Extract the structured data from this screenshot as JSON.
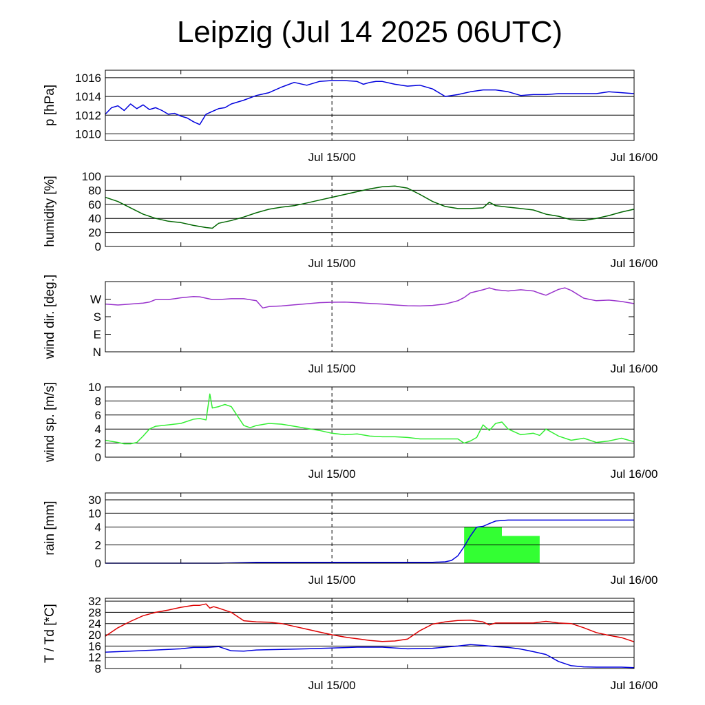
{
  "title": "Leipzig (Jul 14 2025 06UTC)",
  "chart_data": [
    {
      "id": "pressure",
      "type": "line",
      "ylabel": "p [hPa]",
      "ylim": [
        1009.3,
        1016.8
      ],
      "yticks": [
        1010,
        1012,
        1014,
        1016
      ],
      "grid": true,
      "x_ticks": [
        "Jul 15/00",
        "Jul 16/00"
      ],
      "colors": {
        "line": "#0000dd"
      },
      "series": [
        {
          "x": [
            0,
            0.5,
            1,
            1.5,
            2,
            2.5,
            3,
            3.5,
            4,
            4.5,
            5,
            5.5,
            6,
            6.5,
            7,
            7.5,
            8,
            8.5,
            9,
            9.5,
            10,
            11,
            12,
            13,
            14,
            15,
            16,
            17,
            18,
            19,
            20,
            20.5,
            21,
            21.5,
            22,
            23,
            24,
            25,
            26,
            27,
            28,
            29,
            30,
            31,
            32,
            33,
            34,
            35,
            36,
            37,
            38,
            39,
            40,
            41,
            42
          ],
          "y": [
            1012.1,
            1012.8,
            1013.0,
            1012.5,
            1013.2,
            1012.7,
            1013.1,
            1012.6,
            1012.8,
            1012.5,
            1012.1,
            1012.2,
            1011.9,
            1011.7,
            1011.3,
            1011.0,
            1012.1,
            1012.4,
            1012.7,
            1012.8,
            1013.2,
            1013.6,
            1014.1,
            1014.4,
            1015.0,
            1015.5,
            1015.2,
            1015.6,
            1015.7,
            1015.7,
            1015.6,
            1015.3,
            1015.5,
            1015.6,
            1015.6,
            1015.3,
            1015.1,
            1015.2,
            1014.8,
            1014.0,
            1014.2,
            1014.5,
            1014.7,
            1014.7,
            1014.5,
            1014.1,
            1014.2,
            1014.2,
            1014.3,
            1014.3,
            1014.3,
            1014.3,
            1014.5,
            1014.4,
            1014.3
          ]
        }
      ]
    },
    {
      "id": "humidity",
      "type": "line",
      "ylabel": "humidity [%]",
      "ylim": [
        0,
        100
      ],
      "yticks": [
        0,
        20,
        40,
        60,
        80,
        100
      ],
      "grid": true,
      "x_ticks": [
        "Jul 15/00",
        "Jul 16/00"
      ],
      "colors": {
        "line": "#006600"
      },
      "series": [
        {
          "x": [
            0,
            1,
            2,
            3,
            4,
            5,
            6,
            7,
            8,
            8.5,
            9,
            10,
            11,
            12,
            13,
            14,
            15,
            16,
            17,
            18,
            19,
            20,
            21,
            22,
            23,
            24,
            25,
            26,
            27,
            28,
            29,
            30,
            30.5,
            31,
            32,
            33,
            34,
            35,
            36,
            37,
            38,
            39,
            40,
            41,
            42
          ],
          "y": [
            70,
            64,
            55,
            46,
            40,
            36,
            34,
            30,
            27,
            26,
            33,
            37,
            42,
            48,
            53,
            56,
            58,
            62,
            66,
            70,
            74,
            78,
            82,
            85,
            86,
            83,
            74,
            64,
            57,
            54,
            54,
            55,
            63,
            58,
            56,
            54,
            52,
            46,
            43,
            38,
            37,
            40,
            44,
            49,
            53
          ]
        }
      ]
    },
    {
      "id": "wind-direction",
      "type": "line",
      "ylabel": "wind dir. [deg.]",
      "ylim": [
        0,
        360
      ],
      "yticks": [
        0,
        90,
        180,
        270
      ],
      "ytick_labels": [
        "N",
        "E",
        "S",
        "W"
      ],
      "grid": false,
      "x_ticks": [
        "Jul 15/00",
        "Jul 16/00"
      ],
      "colors": {
        "line": "#9933cc"
      },
      "series": [
        {
          "x": [
            0,
            1,
            2,
            3,
            3.5,
            4,
            5,
            5.5,
            6,
            7,
            7.5,
            8,
            8.5,
            9,
            10,
            11,
            12,
            12.5,
            13,
            14,
            15,
            16,
            17,
            18,
            19,
            20,
            21,
            22,
            23,
            24,
            25,
            26,
            27,
            28,
            28.5,
            29,
            30,
            30.5,
            31,
            32,
            33,
            33.5,
            34,
            34.5,
            35,
            36,
            36.5,
            37,
            38,
            39,
            40,
            41,
            42
          ],
          "y": [
            245,
            240,
            245,
            250,
            255,
            268,
            268,
            272,
            277,
            283,
            282,
            275,
            268,
            268,
            272,
            272,
            262,
            225,
            232,
            235,
            241,
            246,
            252,
            254,
            255,
            252,
            248,
            245,
            240,
            236,
            235,
            238,
            245,
            262,
            278,
            302,
            318,
            328,
            318,
            312,
            318,
            315,
            312,
            300,
            290,
            320,
            328,
            315,
            275,
            262,
            265,
            258,
            247
          ]
        }
      ]
    },
    {
      "id": "wind-speed",
      "type": "line",
      "ylabel": "wind sp. [m/s]",
      "ylim": [
        0,
        10
      ],
      "yticks": [
        0,
        2,
        4,
        6,
        8,
        10
      ],
      "grid": true,
      "x_ticks": [
        "Jul 15/00",
        "Jul 16/00"
      ],
      "colors": {
        "line": "#33ee33"
      },
      "series": [
        {
          "x": [
            0,
            1,
            1.5,
            2,
            2.5,
            3,
            3.5,
            4,
            5,
            6,
            7,
            7.5,
            8,
            8.3,
            8.5,
            9,
            9.5,
            10,
            11,
            11.5,
            12,
            13,
            14,
            15,
            16,
            17,
            18,
            19,
            20,
            21,
            22,
            23,
            24,
            25,
            26,
            27,
            28,
            28.5,
            29,
            29.5,
            30,
            30.5,
            31,
            31.5,
            32,
            33,
            34,
            34.5,
            35,
            36,
            37,
            38,
            39,
            40,
            41,
            42
          ],
          "y": [
            2.4,
            2.1,
            1.9,
            1.9,
            2.1,
            3.0,
            4.0,
            4.4,
            4.6,
            4.8,
            5.4,
            5.5,
            5.3,
            9.0,
            7.0,
            7.2,
            7.5,
            7.2,
            4.5,
            4.2,
            4.5,
            4.8,
            4.7,
            4.4,
            4.1,
            3.8,
            3.4,
            3.2,
            3.3,
            3.0,
            2.9,
            2.9,
            2.8,
            2.6,
            2.6,
            2.6,
            2.6,
            2.0,
            2.3,
            2.8,
            4.6,
            3.8,
            4.8,
            5.0,
            4.0,
            3.2,
            3.4,
            3.1,
            4.0,
            3.0,
            2.4,
            2.7,
            2.1,
            2.3,
            2.7,
            2.2
          ]
        }
      ]
    },
    {
      "id": "rain",
      "type": "bar",
      "ylabel": "rain [mm]",
      "ylim": [
        0,
        30
      ],
      "yticks": [
        0,
        2,
        4,
        10,
        30
      ],
      "grid": true,
      "x_ticks": [
        "Jul 15/00",
        "Jul 16/00"
      ],
      "colors": {
        "bars": "#33ff33",
        "line": "#0000dd"
      },
      "bars": [
        {
          "x0": 28.5,
          "x1": 31.5,
          "value": 4.0
        },
        {
          "x0": 31.5,
          "x1": 34.5,
          "value": 3.0
        }
      ],
      "series": [
        {
          "x": [
            0,
            9,
            12,
            20,
            26,
            27,
            27.5,
            28,
            28.5,
            29,
            29.5,
            30,
            30.5,
            31,
            32,
            42
          ],
          "y": [
            0,
            0,
            0.1,
            0.1,
            0.1,
            0.15,
            0.3,
            0.8,
            1.8,
            3.0,
            4.0,
            4.3,
            5.5,
            6.6,
            7.0,
            7.0
          ]
        }
      ]
    },
    {
      "id": "temperature",
      "type": "line",
      "ylabel": "T / Td [*C]",
      "ylim": [
        8,
        33
      ],
      "yticks": [
        8,
        12,
        16,
        20,
        24,
        28,
        32
      ],
      "grid": true,
      "x_ticks": [
        "Jul 15/00",
        "Jul 16/00"
      ],
      "colors": {
        "temperature": "#dd0000",
        "dewpoint": "#0000dd"
      },
      "series": [
        {
          "x": [
            0,
            1,
            2,
            3,
            4,
            5,
            6,
            7,
            7.5,
            8,
            8.3,
            8.6,
            9,
            10,
            11,
            12,
            13,
            14,
            15,
            16,
            17,
            18,
            19,
            20,
            21,
            22,
            23,
            24,
            25,
            26,
            27,
            28,
            29,
            30,
            30.5,
            31,
            32,
            33,
            34,
            35,
            36,
            37,
            38,
            39,
            40,
            41,
            42
          ],
          "y": [
            19.5,
            22.5,
            24.8,
            26.8,
            28.0,
            28.8,
            29.8,
            30.5,
            30.5,
            31.0,
            29.5,
            30.0,
            29.5,
            28.0,
            25.0,
            24.6,
            24.5,
            24.0,
            23.0,
            22.0,
            21.0,
            20.0,
            19.2,
            18.6,
            18.0,
            17.6,
            17.8,
            18.5,
            21.5,
            23.8,
            24.6,
            25.1,
            25.2,
            24.6,
            23.5,
            24.2,
            24.2,
            24.2,
            24.2,
            24.8,
            24.2,
            24.0,
            22.5,
            20.8,
            19.8,
            19.0,
            17.5
          ]
        },
        {
          "x": [
            0,
            2,
            4,
            6,
            7,
            8,
            9,
            10,
            11,
            12,
            14,
            16,
            18,
            20,
            22,
            24,
            26,
            28,
            29,
            30,
            31,
            32,
            33,
            34,
            35,
            36,
            37,
            38,
            39,
            40,
            41,
            42
          ],
          "y": [
            13.8,
            14.2,
            14.6,
            15.0,
            15.5,
            15.5,
            15.8,
            14.3,
            14.2,
            14.6,
            14.8,
            15.0,
            15.3,
            15.6,
            15.6,
            15.0,
            15.2,
            16.0,
            16.5,
            16.2,
            15.8,
            15.5,
            14.9,
            14.0,
            13.0,
            10.5,
            9.0,
            8.6,
            8.5,
            8.5,
            8.5,
            8.3
          ]
        }
      ]
    }
  ]
}
